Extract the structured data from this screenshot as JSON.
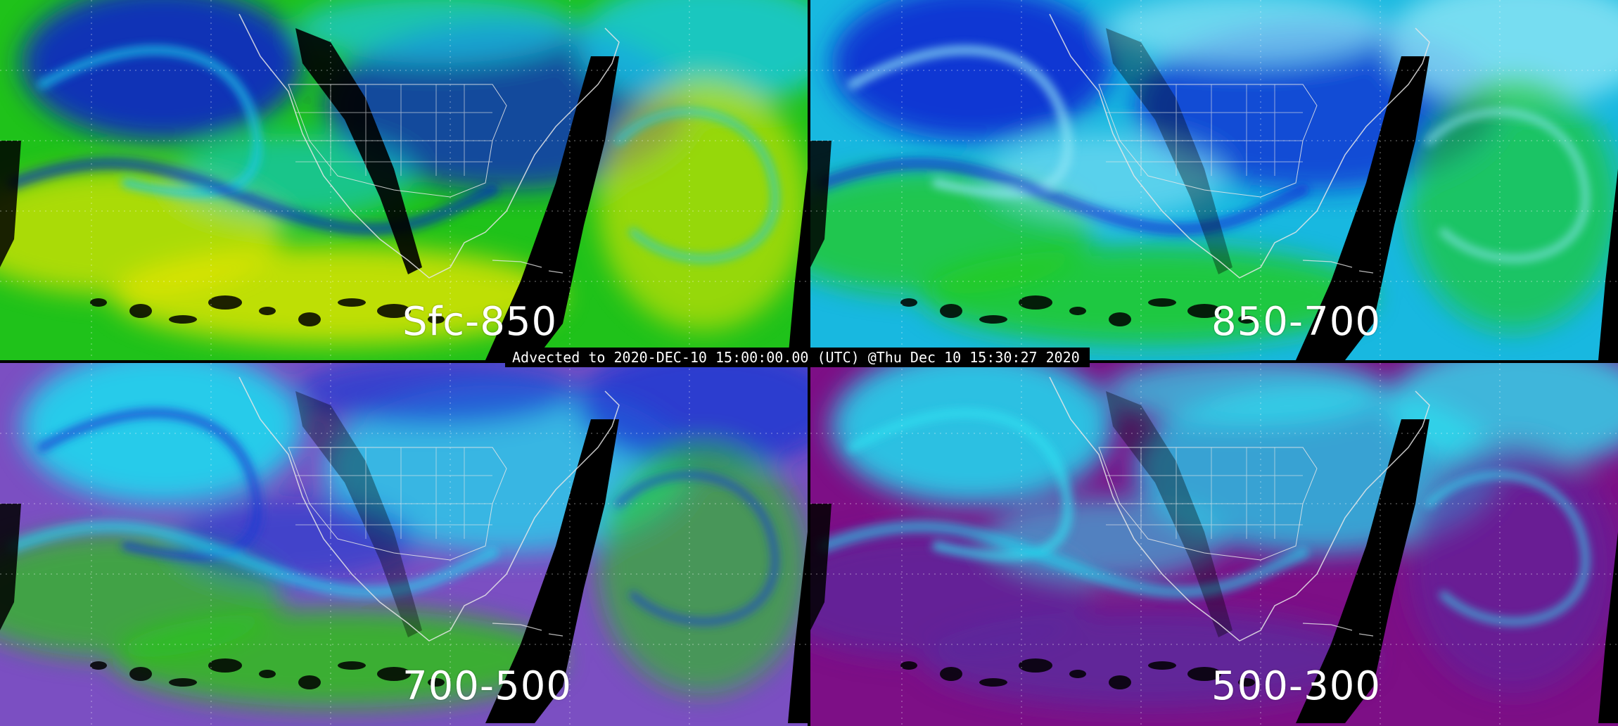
{
  "panels": [
    {
      "id": "p1",
      "label": "Sfc-850",
      "palette": "low",
      "colors": {
        "base": "#1fc21a",
        "swirl": "#0a22c8",
        "bright": "#e6e600",
        "cyan": "#18c8e8"
      }
    },
    {
      "id": "p2",
      "label": "850-700",
      "palette": "mid",
      "colors": {
        "base": "#18b8e0",
        "swirl": "#0f2ad2",
        "bright": "#22cc16",
        "cyan": "#8fe6f5"
      }
    },
    {
      "id": "p3",
      "label": "700-500",
      "palette": "upper",
      "colors": {
        "base": "#7b4fc2",
        "swirl": "#20d8ee",
        "bright": "#29c614",
        "cyan": "#1a3ad2"
      }
    },
    {
      "id": "p4",
      "label": "500-300",
      "palette": "top",
      "colors": {
        "base": "#7d0f86",
        "swirl": "#22d4ec",
        "bright": "#5a2a9e",
        "cyan": "#2fe0f0"
      }
    }
  ],
  "timestamp": "Advected to 2020-DEC-10 15:00:00.00 (UTC) @Thu Dec 10 15:30:27 2020",
  "overlay_colors": {
    "coastline": "#e8e8e8",
    "grid": "#ffffff",
    "no_data": "#000000"
  }
}
